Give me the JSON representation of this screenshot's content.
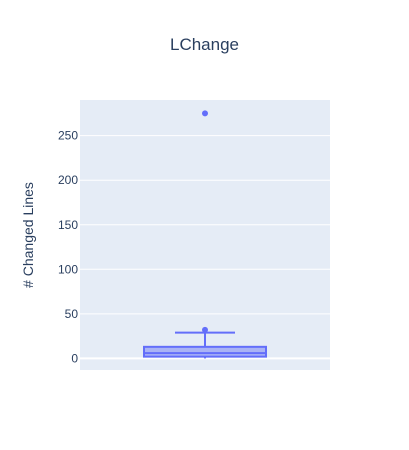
{
  "chart_data": {
    "type": "box",
    "title": "LChange",
    "xlabel": "",
    "ylabel": "# Changed Lines",
    "ylim": [
      -13,
      290
    ],
    "yticks": [
      0,
      50,
      100,
      150,
      200,
      250
    ],
    "grid": true,
    "legend": "none",
    "series": [
      {
        "min": 0,
        "q1": 2,
        "median": 6,
        "q3": 13,
        "upper_fence": 29,
        "outliers": [
          32,
          275
        ]
      }
    ]
  },
  "colors": {
    "plot_background": "#e5ecf6",
    "gridline": "#ffffff",
    "box_fill": "#aab3f5",
    "box_line": "#636efa",
    "text": "#2a3f5f"
  }
}
